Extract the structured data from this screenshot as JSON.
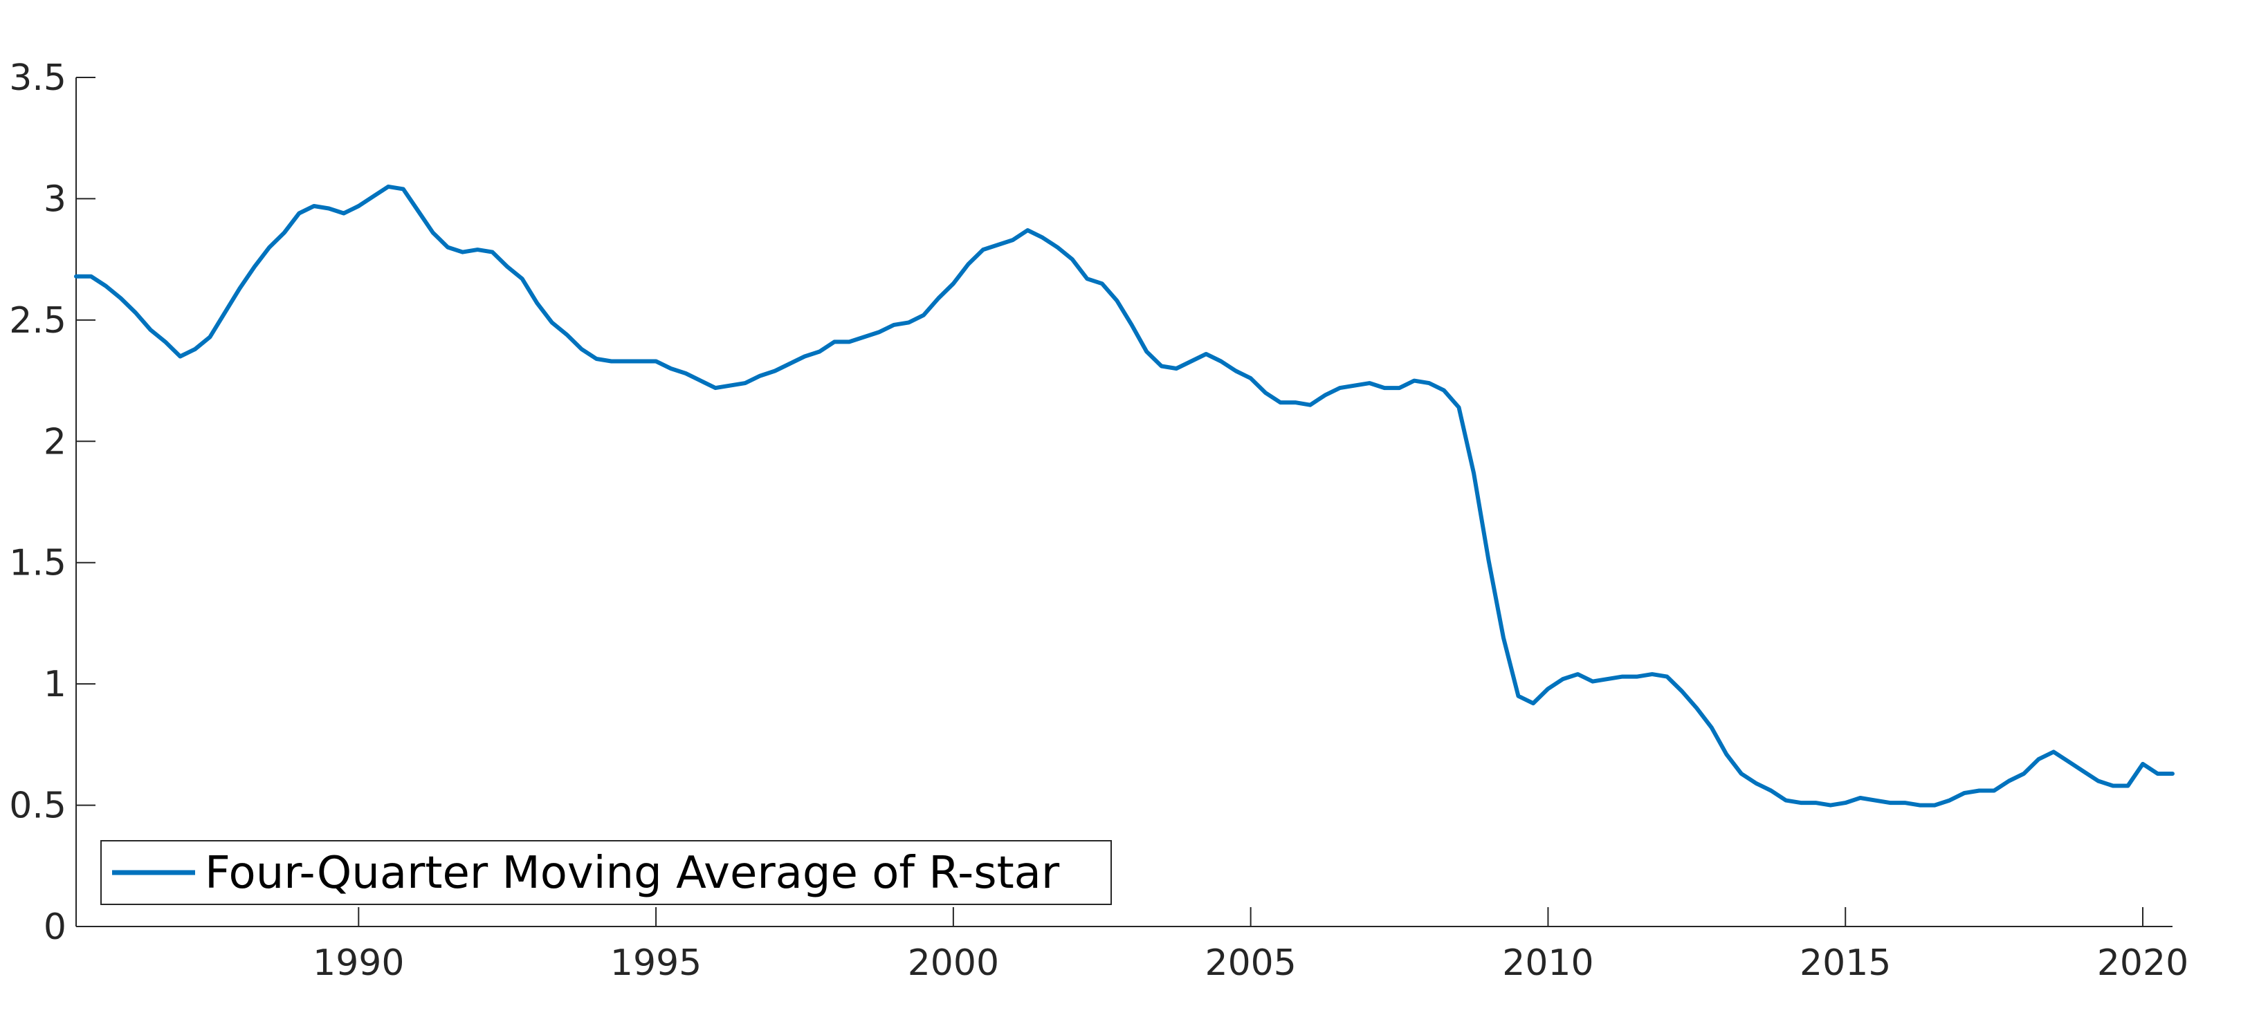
{
  "colors": {
    "series": "#0072BD",
    "axis": "#262626",
    "background": "#ffffff"
  },
  "chart_data": {
    "type": "line",
    "title": "",
    "xlabel": "",
    "ylabel": "",
    "xlim": [
      1985.25,
      2020.5
    ],
    "ylim": [
      0,
      3.5
    ],
    "grid": false,
    "legend_position": "bottom-left",
    "x_ticks": [
      1990,
      1995,
      2000,
      2005,
      2010,
      2015,
      2020
    ],
    "x_tick_labels": [
      "1990",
      "1995",
      "2000",
      "2005",
      "2010",
      "2015",
      "2020"
    ],
    "y_ticks": [
      0,
      0.5,
      1,
      1.5,
      2,
      2.5,
      3,
      3.5
    ],
    "y_tick_labels": [
      "0",
      "0.5",
      "1",
      "1.5",
      "2",
      "2.5",
      "3",
      "3.5"
    ],
    "series": [
      {
        "name": "Four-Quarter Moving Average of R-star",
        "x": [
          1985.25,
          1985.5,
          1985.75,
          1986.0,
          1986.25,
          1986.5,
          1986.75,
          1987.0,
          1987.25,
          1987.5,
          1987.75,
          1988.0,
          1988.25,
          1988.5,
          1988.75,
          1989.0,
          1989.25,
          1989.5,
          1989.75,
          1990.0,
          1990.25,
          1990.5,
          1990.75,
          1991.0,
          1991.25,
          1991.5,
          1991.75,
          1992.0,
          1992.25,
          1992.5,
          1992.75,
          1993.0,
          1993.25,
          1993.5,
          1993.75,
          1994.0,
          1994.25,
          1994.5,
          1994.75,
          1995.0,
          1995.25,
          1995.5,
          1995.75,
          1996.0,
          1996.25,
          1996.5,
          1996.75,
          1997.0,
          1997.25,
          1997.5,
          1997.75,
          1998.0,
          1998.25,
          1998.5,
          1998.75,
          1999.0,
          1999.25,
          1999.5,
          1999.75,
          2000.0,
          2000.25,
          2000.5,
          2000.75,
          2001.0,
          2001.25,
          2001.5,
          2001.75,
          2002.0,
          2002.25,
          2002.5,
          2002.75,
          2003.0,
          2003.25,
          2003.5,
          2003.75,
          2004.0,
          2004.25,
          2004.5,
          2004.75,
          2005.0,
          2005.25,
          2005.5,
          2005.75,
          2006.0,
          2006.25,
          2006.5,
          2006.75,
          2007.0,
          2007.25,
          2007.5,
          2007.75,
          2008.0,
          2008.25,
          2008.5,
          2008.75,
          2009.0,
          2009.25,
          2009.5,
          2009.75,
          2010.0,
          2010.25,
          2010.5,
          2010.75,
          2011.0,
          2011.25,
          2011.5,
          2011.75,
          2012.0,
          2012.25,
          2012.5,
          2012.75,
          2013.0,
          2013.25,
          2013.5,
          2013.75,
          2014.0,
          2014.25,
          2014.5,
          2014.75,
          2015.0,
          2015.25,
          2015.5,
          2015.75,
          2016.0,
          2016.25,
          2016.5,
          2016.75,
          2017.0,
          2017.25,
          2017.5,
          2017.75,
          2018.0,
          2018.25,
          2018.5,
          2018.75,
          2019.0,
          2019.25,
          2019.5,
          2019.75,
          2020.0,
          2020.25,
          2020.5
        ],
        "y": [
          2.68,
          2.68,
          2.64,
          2.59,
          2.53,
          2.46,
          2.41,
          2.35,
          2.38,
          2.43,
          2.53,
          2.63,
          2.72,
          2.8,
          2.86,
          2.94,
          2.97,
          2.96,
          2.94,
          2.97,
          3.01,
          3.05,
          3.04,
          2.95,
          2.86,
          2.8,
          2.78,
          2.79,
          2.78,
          2.72,
          2.67,
          2.57,
          2.49,
          2.44,
          2.38,
          2.34,
          2.33,
          2.33,
          2.33,
          2.33,
          2.3,
          2.28,
          2.25,
          2.22,
          2.23,
          2.24,
          2.27,
          2.29,
          2.32,
          2.35,
          2.37,
          2.41,
          2.41,
          2.43,
          2.45,
          2.48,
          2.49,
          2.52,
          2.59,
          2.65,
          2.73,
          2.79,
          2.81,
          2.83,
          2.87,
          2.84,
          2.8,
          2.75,
          2.67,
          2.65,
          2.58,
          2.48,
          2.37,
          2.31,
          2.3,
          2.33,
          2.36,
          2.33,
          2.29,
          2.26,
          2.2,
          2.16,
          2.16,
          2.15,
          2.19,
          2.22,
          2.23,
          2.24,
          2.22,
          2.22,
          2.25,
          2.24,
          2.21,
          2.14,
          1.87,
          1.51,
          1.19,
          0.95,
          0.92,
          0.98,
          1.02,
          1.04,
          1.01,
          1.02,
          1.03,
          1.03,
          1.04,
          1.03,
          0.97,
          0.9,
          0.82,
          0.71,
          0.63,
          0.59,
          0.56,
          0.52,
          0.51,
          0.51,
          0.5,
          0.51,
          0.53,
          0.52,
          0.51,
          0.51,
          0.5,
          0.5,
          0.52,
          0.55,
          0.56,
          0.56,
          0.6,
          0.63,
          0.69,
          0.72,
          0.68,
          0.64,
          0.6,
          0.58,
          0.58,
          0.67,
          0.63,
          0.63
        ]
      }
    ]
  }
}
